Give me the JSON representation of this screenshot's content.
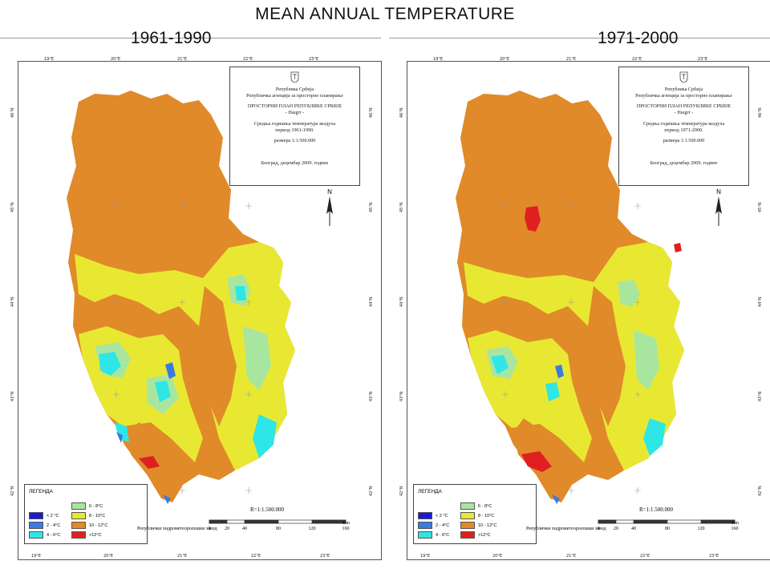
{
  "title": "MEAN ANNUAL TEMPERATURE",
  "panels": [
    {
      "period": "1961-1990",
      "info": {
        "line1": "Република Србија",
        "line2": "Републичка агенција за просторно планирање",
        "line3": "ПРОСТОРНИ ПЛАН РЕПУБЛИКЕ СРБИЈЕ",
        "line4": "- Нацрт -",
        "line5": "Средња годишња температура ваздуха",
        "line6": "период 1961-1990.",
        "line7": "размера 1:1.500.000",
        "line8": "Београд, децембар 2009. године"
      },
      "has_hotspot": false
    },
    {
      "period": "1971-2000",
      "info": {
        "line1": "Република Србија",
        "line2": "Републичка агенција за просторно планирање",
        "line3": "ПРОСТОРНИ ПЛАН РЕПУБЛИКЕ СРБИЈЕ",
        "line4": "- Нацрт -",
        "line5": "Средња годишња температура ваздуха",
        "line6": "период 1971-2000.",
        "line7": "размера 1:1.500.000",
        "line8": "Београд, децембар 2009. године"
      },
      "has_hotspot": true
    }
  ],
  "legend": {
    "title": "ЛЕГЕНДА",
    "items": [
      {
        "label": "< 2 °C",
        "color": "#1a1ad6"
      },
      {
        "label": "2 - 4°C",
        "color": "#3a7be0"
      },
      {
        "label": "4 - 6°C",
        "color": "#2ee6e6"
      },
      {
        "label": "6 - 8°C",
        "color": "#a8e6a0"
      },
      {
        "label": "8 - 10°C",
        "color": "#e8e832"
      },
      {
        "label": "10 - 12°C",
        "color": "#e08a2a"
      },
      {
        "label": ">12°C",
        "color": "#e02020"
      }
    ]
  },
  "scale": {
    "ratio": "R=1:1.500.000",
    "ticks": [
      "0",
      "20",
      "40",
      "80",
      "120",
      "160"
    ],
    "unit": "Km"
  },
  "north_label": "N",
  "institution": "Републички хидрометеоролошки завод",
  "top_coords": [
    "19°E",
    "20°E",
    "21°E",
    "22°E",
    "23°E"
  ],
  "side_coords": [
    "46°N",
    "45°N",
    "44°N",
    "43°N",
    "42°N"
  ],
  "colors": {
    "orange": "#e08a2a",
    "yellow": "#e8e832",
    "light_green": "#a8e6a0",
    "cyan": "#2ee6e6",
    "blue_mid": "#3a7be0",
    "blue_dark": "#1a1ad6",
    "red": "#e02020"
  }
}
